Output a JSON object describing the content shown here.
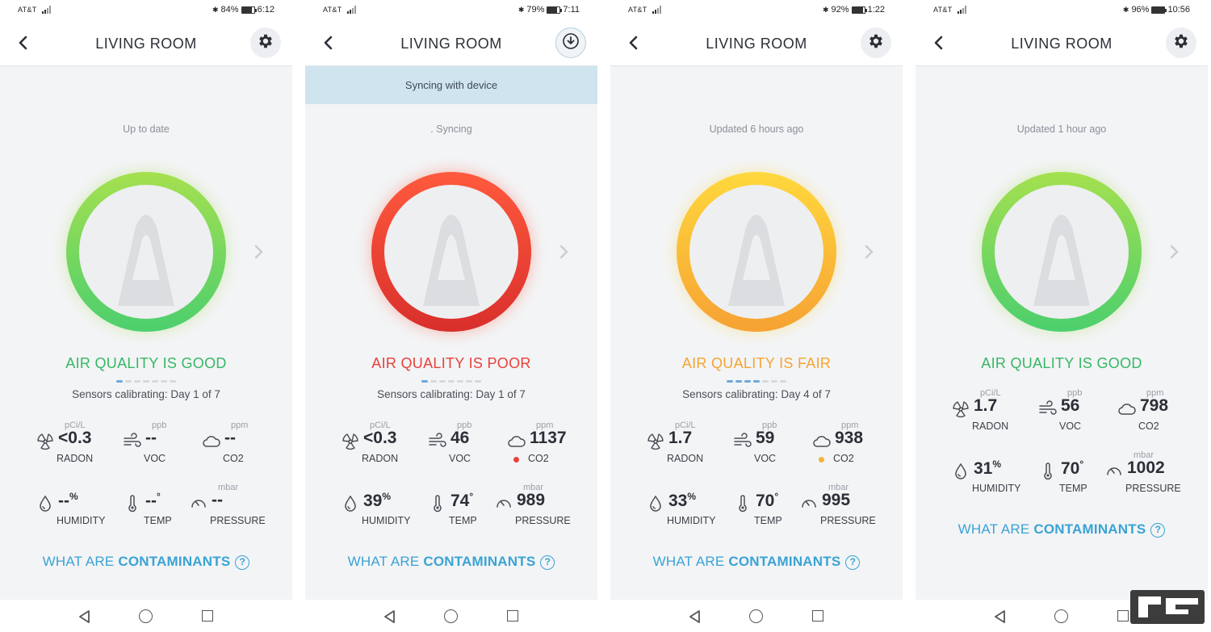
{
  "brand": {
    "accent": "#3aa3d4",
    "good": "#36b863",
    "poor": "#e8413a",
    "fair": "#f4a531"
  },
  "screens": [
    {
      "carrier": "AT&T",
      "battery": "84%",
      "time": "6:12",
      "title": "LIVING ROOM",
      "header_button": "gear-icon",
      "status": "Up to date",
      "quality": "AIR QUALITY IS GOOD",
      "quality_color": "#36b863",
      "ring_colors": [
        "#a5e04f",
        "#4ccf6e"
      ],
      "calibration_day": 1,
      "calibration": "Sensors calibrating: Day 1 of 7",
      "radon": {
        "unit": "pCi/L",
        "value": "<0.3",
        "label": "RADON"
      },
      "voc": {
        "unit": "ppb",
        "value": "--",
        "label": "VOC"
      },
      "co2": {
        "unit": "ppm",
        "value": "--",
        "label": "CO2"
      },
      "humidity": {
        "value": "--",
        "suffix": "%",
        "label": "HUMIDITY"
      },
      "temp": {
        "value": "--",
        "suffix": "°",
        "label": "TEMP"
      },
      "pressure": {
        "unit": "mbar",
        "value": "--",
        "label": "PRESSURE"
      },
      "contam_prefix": "WHAT ARE ",
      "contam_bold": "CONTAMINANTS",
      "help": "?"
    },
    {
      "carrier": "AT&T",
      "battery": "79%",
      "time": "7:11",
      "title": "LIVING ROOM",
      "header_button": "download-icon",
      "banner": "Syncing with device",
      "status": ".  Syncing",
      "quality": "AIR QUALITY IS POOR",
      "quality_color": "#e8413a",
      "ring_colors": [
        "#ff5a3d",
        "#d92f2c"
      ],
      "calibration_day": 1,
      "calibration": "Sensors calibrating: Day 1 of 7",
      "radon": {
        "unit": "pCi/L",
        "value": "<0.3",
        "label": "RADON"
      },
      "voc": {
        "unit": "ppb",
        "value": "46",
        "label": "VOC"
      },
      "co2": {
        "unit": "ppm",
        "value": "1137",
        "label": "CO2",
        "alert": "#e8413a"
      },
      "humidity": {
        "value": "39",
        "suffix": "%",
        "label": "HUMIDITY"
      },
      "temp": {
        "value": "74",
        "suffix": "°",
        "label": "TEMP"
      },
      "pressure": {
        "unit": "mbar",
        "value": "989",
        "label": "PRESSURE"
      },
      "contam_prefix": "WHAT ARE ",
      "contam_bold": "CONTAMINANTS",
      "help": "?"
    },
    {
      "carrier": "AT&T",
      "battery": "92%",
      "time": "1:22",
      "title": "LIVING ROOM",
      "header_button": "gear-icon",
      "status": "Updated 6 hours ago",
      "quality": "AIR QUALITY IS FAIR",
      "quality_color": "#f4a531",
      "ring_colors": [
        "#ffd83d",
        "#f6a233"
      ],
      "calibration_day": 4,
      "calibration": "Sensors calibrating: Day 4 of 7",
      "radon": {
        "unit": "pCi/L",
        "value": "1.7",
        "label": "RADON"
      },
      "voc": {
        "unit": "ppb",
        "value": "59",
        "label": "VOC"
      },
      "co2": {
        "unit": "ppm",
        "value": "938",
        "label": "CO2",
        "alert": "#f4b33a"
      },
      "humidity": {
        "value": "33",
        "suffix": "%",
        "label": "HUMIDITY"
      },
      "temp": {
        "value": "70",
        "suffix": "°",
        "label": "TEMP"
      },
      "pressure": {
        "unit": "mbar",
        "value": "995",
        "label": "PRESSURE"
      },
      "contam_prefix": "WHAT ARE ",
      "contam_bold": "CONTAMINANTS",
      "help": "?"
    },
    {
      "carrier": "AT&T",
      "battery": "96%",
      "time": "10:56",
      "title": "LIVING ROOM",
      "header_button": "gear-icon",
      "status": "Updated 1 hour ago",
      "quality": "AIR QUALITY IS GOOD",
      "quality_color": "#36b863",
      "ring_colors": [
        "#a5e04f",
        "#4ccf6e"
      ],
      "radon": {
        "unit": "pCi/L",
        "value": "1.7",
        "label": "RADON"
      },
      "voc": {
        "unit": "ppb",
        "value": "56",
        "label": "VOC"
      },
      "co2": {
        "unit": "ppm",
        "value": "798",
        "label": "CO2"
      },
      "humidity": {
        "value": "31",
        "suffix": "%",
        "label": "HUMIDITY"
      },
      "temp": {
        "value": "70",
        "suffix": "°",
        "label": "TEMP"
      },
      "pressure": {
        "unit": "mbar",
        "value": "1002",
        "label": "PRESSURE"
      },
      "contam_prefix": "WHAT ARE ",
      "contam_bold": "CONTAMINANTS",
      "help": "?"
    }
  ]
}
